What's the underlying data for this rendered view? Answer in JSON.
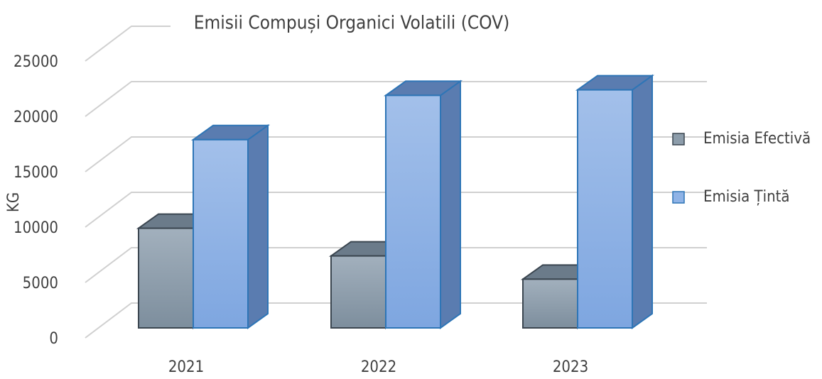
{
  "chart_data": {
    "type": "bar3d",
    "title": "Emisii Compuși Organici Volatili (COV)",
    "y_label": "KG",
    "categories": [
      "2021",
      "2022",
      "2023"
    ],
    "series": [
      {
        "name": "Emisia Efectivă",
        "color": "#8d9dab",
        "values": [
          9000,
          6500,
          4400
        ]
      },
      {
        "name": "Emisia Țintă",
        "color": "#8fb3e6",
        "values": [
          17000,
          21000,
          21500
        ]
      }
    ],
    "ylim": [
      0,
      25000
    ],
    "yticks": [
      0,
      5000,
      10000,
      15000,
      20000,
      25000
    ],
    "grid": true,
    "legend": "right"
  }
}
